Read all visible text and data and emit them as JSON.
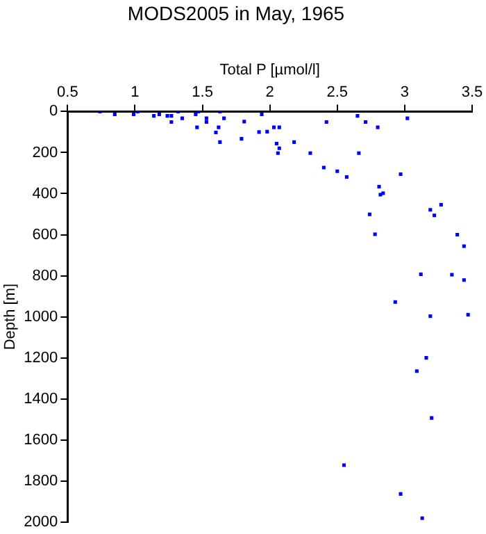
{
  "chart_data": {
    "type": "scatter",
    "title": "MODS2005 in May, 1965",
    "xlabel": "Total P [µmol/l]",
    "ylabel": "Depth [m]",
    "xlim": [
      0.5,
      3.5
    ],
    "xticks": [
      0.5,
      1,
      1.5,
      2,
      2.5,
      3,
      3.5
    ],
    "ylim": [
      2000,
      0
    ],
    "yticks": [
      0,
      200,
      400,
      600,
      800,
      1000,
      1200,
      1400,
      1600,
      1800,
      2000
    ],
    "grid": false,
    "legend": false,
    "marker": "square",
    "series": [
      {
        "color": "#0000ff",
        "x": [
          0.74,
          0.85,
          0.99,
          1.02,
          1.14,
          1.18,
          1.24,
          1.27,
          1.27,
          1.32,
          1.35,
          1.45,
          1.46,
          1.47,
          1.53,
          1.53,
          1.6,
          1.62,
          1.63,
          1.63,
          1.66,
          1.79,
          1.81,
          1.92,
          1.94,
          1.98,
          2.03,
          2.05,
          2.07,
          2.07,
          2.06,
          2.18,
          2.3,
          2.4,
          2.42,
          2.5,
          2.57,
          2.65,
          2.66,
          2.71,
          2.8,
          2.81,
          2.82,
          2.84,
          2.74,
          2.97,
          3.02,
          3.19,
          3.22,
          3.27,
          2.78,
          3.39,
          3.44,
          3.12,
          3.35,
          3.44,
          2.93,
          3.19,
          3.47,
          3.16,
          3.09,
          3.2,
          2.55,
          2.97,
          3.13
        ],
        "values": [
          0,
          14,
          14,
          0,
          21,
          14,
          21,
          21,
          51,
          0,
          33,
          14,
          77,
          0,
          33,
          51,
          102,
          77,
          0,
          149,
          33,
          133,
          49,
          100,
          14,
          98,
          77,
          156,
          77,
          179,
          203,
          149,
          203,
          273,
          51,
          291,
          319,
          21,
          203,
          51,
          77,
          366,
          405,
          398,
          501,
          305,
          33,
          479,
          506,
          454,
          598,
          600,
          656,
          793,
          795,
          821,
          928,
          997,
          990,
          1200,
          1265,
          1493,
          1723,
          1863,
          1981
        ]
      }
    ]
  }
}
